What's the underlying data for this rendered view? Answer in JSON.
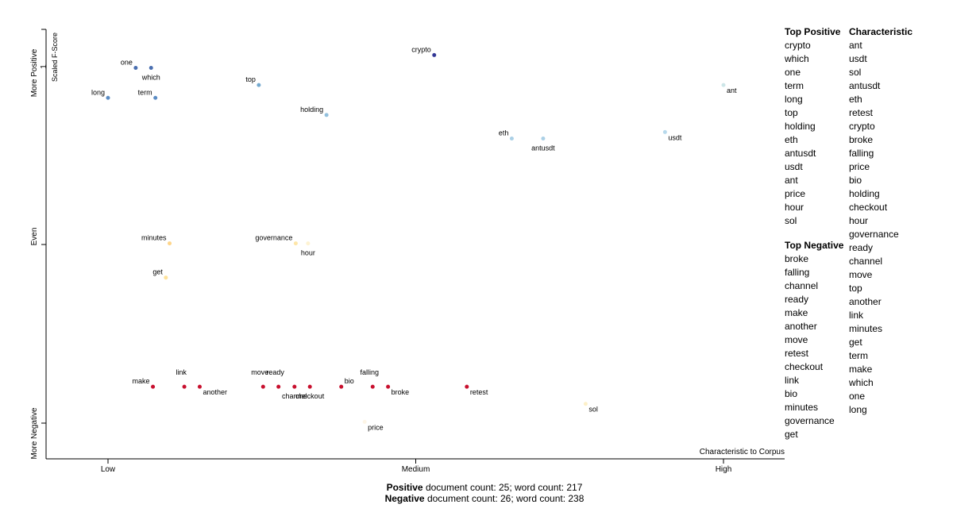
{
  "chart_data": {
    "type": "scatter",
    "x_axis": {
      "label": "Characteristic to Corpus",
      "ticks": [
        {
          "x": 0.0,
          "label": "Low"
        },
        {
          "x": 0.5,
          "label": "Medium"
        },
        {
          "x": 1.0,
          "label": "High"
        }
      ]
    },
    "y_axis": {
      "label": "Scaled F-Score",
      "ticks": [
        {
          "y": 1.0,
          "label": "More Positive"
        },
        {
          "y": 0.5,
          "label": "Even"
        },
        {
          "y": 0.08,
          "label": "More Negative"
        }
      ],
      "tick_mark_label": "1"
    },
    "points": [
      {
        "term": "crypto",
        "x": 0.53,
        "y": 0.94,
        "color": "#313695"
      },
      {
        "term": "one",
        "x": 0.045,
        "y": 0.91,
        "color": "#4a6fb0"
      },
      {
        "term": "which",
        "x": 0.07,
        "y": 0.91,
        "color": "#4a6fb0"
      },
      {
        "term": "long",
        "x": 0.0,
        "y": 0.84,
        "color": "#5b8cc4"
      },
      {
        "term": "term",
        "x": 0.077,
        "y": 0.84,
        "color": "#5b8cc4"
      },
      {
        "term": "top",
        "x": 0.245,
        "y": 0.87,
        "color": "#74a9cf"
      },
      {
        "term": "holding",
        "x": 0.355,
        "y": 0.8,
        "color": "#92c0dd"
      },
      {
        "term": "ant",
        "x": 1.0,
        "y": 0.87,
        "color": "#cde6e8"
      },
      {
        "term": "usdt",
        "x": 0.905,
        "y": 0.76,
        "color": "#b7d9ec"
      },
      {
        "term": "eth",
        "x": 0.656,
        "y": 0.745,
        "color": "#abd0e6"
      },
      {
        "term": "antusdt",
        "x": 0.707,
        "y": 0.745,
        "color": "#abd0e6"
      },
      {
        "term": "minutes",
        "x": 0.1,
        "y": 0.5,
        "color": "#fed58a"
      },
      {
        "term": "governance",
        "x": 0.305,
        "y": 0.5,
        "color": "#fee6a8"
      },
      {
        "term": "hour",
        "x": 0.325,
        "y": 0.5,
        "color": "#fef3d2"
      },
      {
        "term": "get",
        "x": 0.094,
        "y": 0.42,
        "color": "#fee29a"
      },
      {
        "term": "make",
        "x": 0.073,
        "y": 0.165,
        "color": "#c8102e"
      },
      {
        "term": "link",
        "x": 0.124,
        "y": 0.165,
        "color": "#c8102e"
      },
      {
        "term": "another",
        "x": 0.149,
        "y": 0.165,
        "color": "#c8102e"
      },
      {
        "term": "move",
        "x": 0.252,
        "y": 0.165,
        "color": "#c8102e"
      },
      {
        "term": "ready",
        "x": 0.277,
        "y": 0.165,
        "color": "#c8102e"
      },
      {
        "term": "channel",
        "x": 0.303,
        "y": 0.165,
        "color": "#c8102e"
      },
      {
        "term": "checkout",
        "x": 0.328,
        "y": 0.165,
        "color": "#c8102e"
      },
      {
        "term": "bio",
        "x": 0.379,
        "y": 0.165,
        "color": "#c8102e"
      },
      {
        "term": "falling",
        "x": 0.43,
        "y": 0.165,
        "color": "#c8102e"
      },
      {
        "term": "broke",
        "x": 0.455,
        "y": 0.165,
        "color": "#c8102e"
      },
      {
        "term": "retest",
        "x": 0.583,
        "y": 0.165,
        "color": "#c8102e"
      },
      {
        "term": "price",
        "x": 0.417,
        "y": 0.083,
        "color": "#fdf5e6"
      },
      {
        "term": "sol",
        "x": 0.776,
        "y": 0.125,
        "color": "#fdf0c8"
      }
    ],
    "top_positive": {
      "title": "Top Positive",
      "terms": [
        "crypto",
        "which",
        "one",
        "term",
        "long",
        "top",
        "holding",
        "eth",
        "antusdt",
        "usdt",
        "ant",
        "price",
        "hour",
        "sol"
      ]
    },
    "top_negative": {
      "title": "Top Negative",
      "terms": [
        "broke",
        "falling",
        "channel",
        "ready",
        "make",
        "another",
        "move",
        "retest",
        "checkout",
        "link",
        "bio",
        "minutes",
        "governance",
        "get"
      ]
    },
    "characteristic": {
      "title": "Characteristic",
      "terms": [
        "ant",
        "usdt",
        "sol",
        "antusdt",
        "eth",
        "retest",
        "crypto",
        "broke",
        "falling",
        "price",
        "bio",
        "holding",
        "checkout",
        "hour",
        "governance",
        "ready",
        "channel",
        "move",
        "top",
        "another",
        "link",
        "minutes",
        "get",
        "term",
        "make",
        "which",
        "one",
        "long"
      ]
    }
  },
  "footer": {
    "positive_label": "Positive",
    "positive_text": " document count: 25; word count: 217",
    "negative_label": "Negative",
    "negative_text": " document count: 26; word count: 238"
  }
}
